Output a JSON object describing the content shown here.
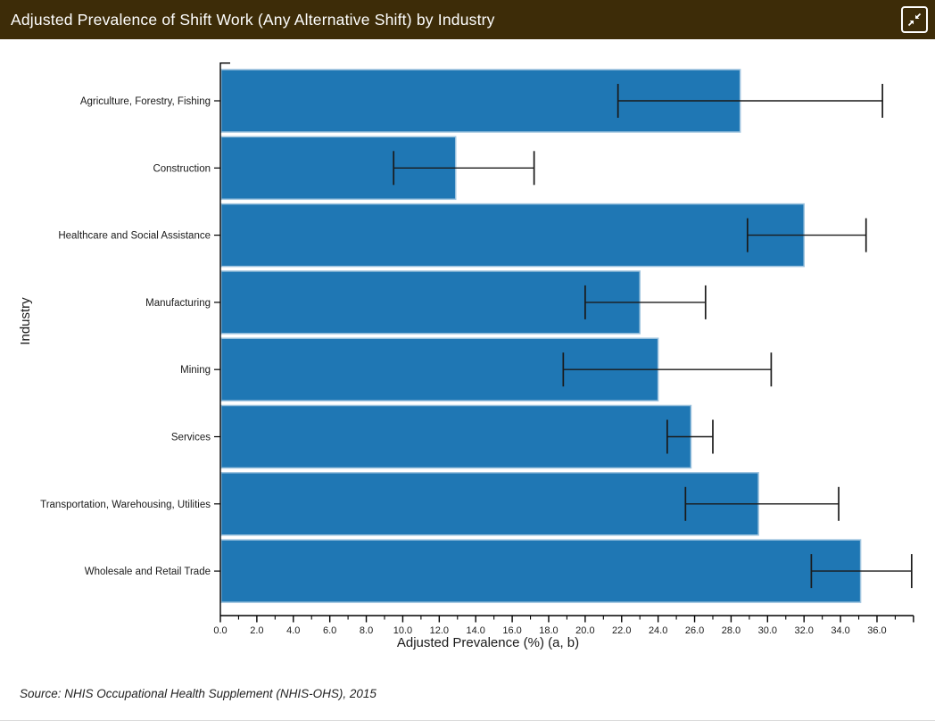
{
  "header": {
    "title": "Adjusted Prevalence of Shift Work (Any Alternative Shift) by Industry",
    "background": "#3d2c08",
    "collapse_button_label": "Collapse"
  },
  "chart_data": {
    "type": "bar",
    "orientation": "horizontal",
    "title": "Adjusted Prevalence of Shift Work (Any Alternative Shift) by Industry",
    "categories": [
      "Agriculture, Forestry, Fishing",
      "Construction",
      "Healthcare and Social Assistance",
      "Manufacturing",
      "Mining",
      "Services",
      "Transportation, Warehousing, Utilities",
      "Wholesale and Retail Trade"
    ],
    "values": [
      28.5,
      12.9,
      32.0,
      23.0,
      24.0,
      25.8,
      29.5,
      35.1
    ],
    "error_low": [
      21.8,
      9.5,
      28.9,
      20.0,
      18.8,
      24.5,
      25.5,
      32.4
    ],
    "error_high": [
      36.3,
      17.2,
      35.4,
      26.6,
      30.2,
      27.0,
      33.9,
      37.9
    ],
    "xlabel": "Adjusted Prevalence (%) (a, b)",
    "ylabel": "Industry",
    "xlim": [
      0,
      38
    ],
    "x_major_tick_step": 2,
    "x_minor_tick_step": 1,
    "x_tick_labels": [
      "0.0",
      "2.0",
      "4.0",
      "6.0",
      "8.0",
      "10.0",
      "12.0",
      "14.0",
      "16.0",
      "18.0",
      "20.0",
      "22.0",
      "24.0",
      "26.0",
      "28.0",
      "30.0",
      "32.0",
      "34.0",
      "36.0"
    ],
    "grid": false,
    "legend": null,
    "bar_color": "#1f77b4",
    "bar_edge_color": "#9dc3de",
    "error_color": "#1a1a1a",
    "axis_color": "#000000"
  },
  "footer": {
    "source": "Source: NHIS Occupational Health Supplement (NHIS-OHS), 2015"
  }
}
